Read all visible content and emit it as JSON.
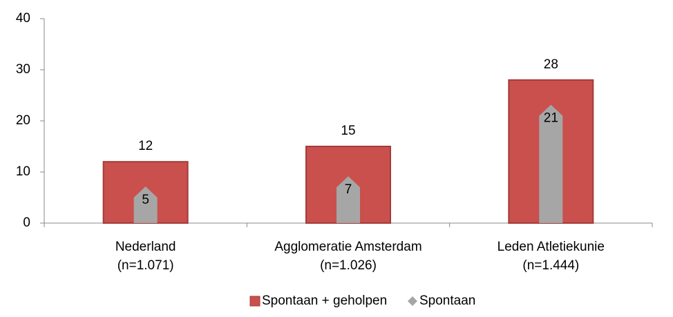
{
  "chart_data": {
    "type": "bar",
    "categories": [
      [
        "Nederland",
        "(n=1.071)"
      ],
      [
        "Agglomeratie Amsterdam",
        "(n=1.026)"
      ],
      [
        "Leden Atletiekunie",
        "(n=1.444)"
      ]
    ],
    "series": [
      {
        "name": "Spontaan + geholpen",
        "color": "#c9504d",
        "values": [
          12,
          15,
          28
        ]
      },
      {
        "name": "Spontaan",
        "color": "#a6a6a6",
        "values": [
          5,
          7,
          21
        ]
      }
    ],
    "ylim": [
      0,
      40
    ],
    "yticks": [
      0,
      10,
      20,
      30,
      40
    ],
    "grid": false
  }
}
